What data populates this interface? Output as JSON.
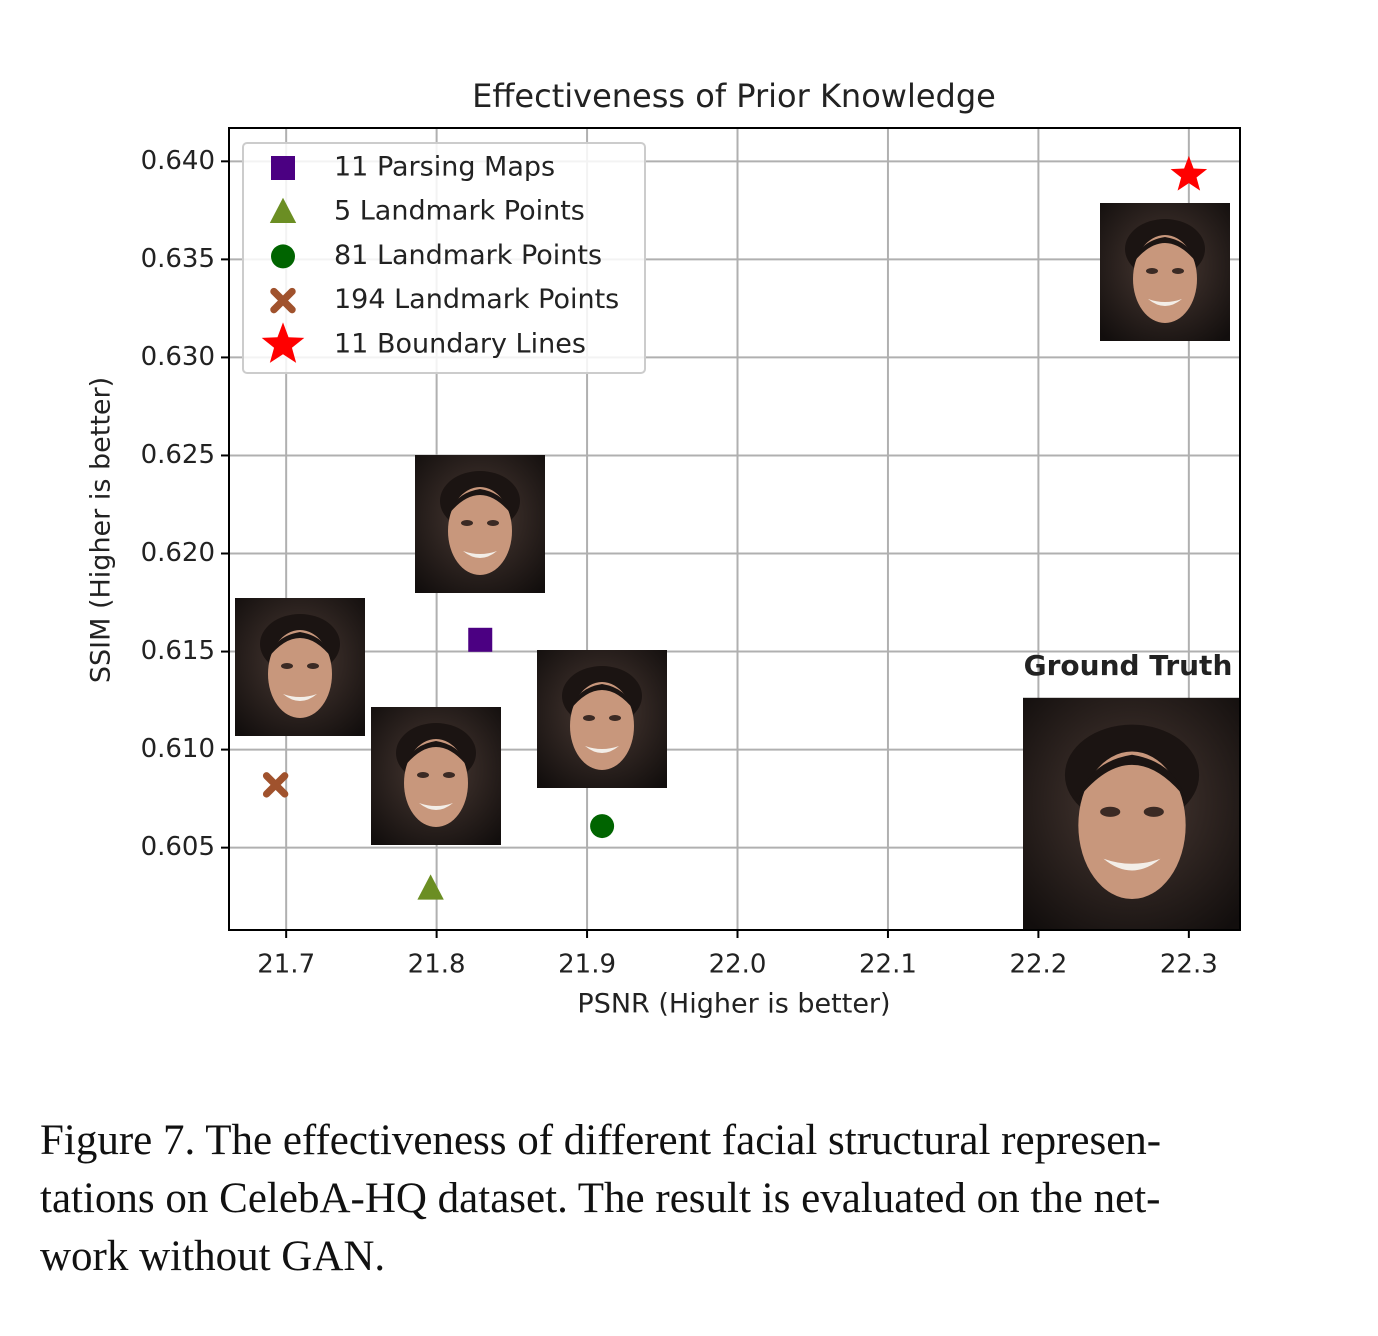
{
  "chart_data": {
    "type": "scatter",
    "title": "Effectiveness of Prior Knowledge",
    "x_label": "PSNR (Higher is better)",
    "y_label": "SSIM (Higher is better)",
    "annotation": "Ground Truth",
    "xlim": [
      21.662,
      22.334
    ],
    "ylim": [
      0.6008,
      0.6417
    ],
    "xticks": [
      21.7,
      21.8,
      21.9,
      {
        "value": 22.0,
        "label": "22.0"
      },
      22.1,
      22.2,
      22.3
    ],
    "yticks": [
      0.605,
      {
        "value": 0.61,
        "label": "0.610"
      },
      0.615,
      {
        "value": 0.62,
        "label": "0.620"
      },
      0.625,
      {
        "value": 0.63,
        "label": "0.630"
      },
      0.635,
      {
        "value": 0.64,
        "label": "0.640"
      }
    ],
    "grid": true,
    "legend": "upper left",
    "series": [
      {
        "name": "11 Parsing Maps",
        "color": "#4b0082",
        "marker": "square",
        "x": [
          21.829
        ],
        "values": [
          0.6156
        ]
      },
      {
        "name": "5 Landmark Points",
        "color": "#6b8e23",
        "marker": "triangle",
        "x": [
          21.796
        ],
        "values": [
          0.6029
        ]
      },
      {
        "name": "81 Landmark Points",
        "color": "#006400",
        "marker": "circle",
        "x": [
          21.91
        ],
        "values": [
          0.6061
        ]
      },
      {
        "name": "194 Landmark Points",
        "color": "#a0522d",
        "marker": "x",
        "x": [
          21.693
        ],
        "values": [
          0.6082
        ]
      },
      {
        "name": "11 Boundary Lines",
        "color": "#ff0000",
        "marker": "star",
        "x": [
          22.3
        ],
        "values": [
          0.6393
        ]
      }
    ]
  },
  "caption": [
    "Figure 7. The effectiveness of different facial structural represen-",
    "tations on CelebA-HQ dataset. The result is evaluated on the net-",
    "work without GAN."
  ]
}
